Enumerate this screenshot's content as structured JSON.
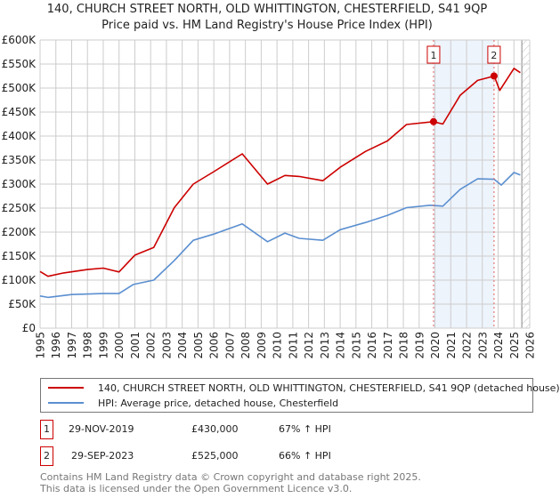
{
  "title": "140, CHURCH STREET NORTH, OLD WHITTINGTON, CHESTERFIELD, S41 9QP",
  "subtitle": "Price paid vs. HM Land Registry's House Price Index (HPI)",
  "colors": {
    "property": "#cc0000",
    "hpi": "#5b8fd0",
    "shade": "#eef4fc",
    "grid": "#cccccc"
  },
  "chart_data": {
    "type": "line",
    "title": "140, CHURCH STREET NORTH, OLD WHITTINGTON, CHESTERFIELD, S41 9QP",
    "subtitle": "Price paid vs. HM Land Registry's House Price Index (HPI)",
    "xlim": [
      1995,
      2026
    ],
    "ylim": [
      0,
      600000
    ],
    "grid": true,
    "x_ticks": [
      "1995",
      "1996",
      "1997",
      "1998",
      "1999",
      "2000",
      "2001",
      "2002",
      "2003",
      "2004",
      "2005",
      "2006",
      "2007",
      "2008",
      "2009",
      "2010",
      "2011",
      "2012",
      "2013",
      "2014",
      "2015",
      "2016",
      "2017",
      "2018",
      "2019",
      "2020",
      "2021",
      "2022",
      "2023",
      "2024",
      "2025",
      "2026"
    ],
    "y_ticks": [
      {
        "value": 0,
        "label": "£0"
      },
      {
        "value": 50000,
        "label": "£50K"
      },
      {
        "value": 100000,
        "label": "£100K"
      },
      {
        "value": 150000,
        "label": "£150K"
      },
      {
        "value": 200000,
        "label": "£200K"
      },
      {
        "value": 250000,
        "label": "£250K"
      },
      {
        "value": 300000,
        "label": "£300K"
      },
      {
        "value": 350000,
        "label": "£350K"
      },
      {
        "value": 400000,
        "label": "£400K"
      },
      {
        "value": 450000,
        "label": "£450K"
      },
      {
        "value": 500000,
        "label": "£500K"
      },
      {
        "value": 550000,
        "label": "£550K"
      },
      {
        "value": 600000,
        "label": "£600K"
      }
    ],
    "series": [
      {
        "name": "140, CHURCH STREET NORTH, OLD WHITTINGTON, CHESTERFIELD, S41 9QP (detached house)",
        "x": [
          1995.0,
          1995.5,
          1996.5,
          1998,
          1999,
          2000,
          2001,
          2002.2,
          2003.5,
          2004.7,
          2006,
          2007.8,
          2009.4,
          2010.5,
          2011.4,
          2012.9,
          2014,
          2015.6,
          2017,
          2018.2,
          2019.9,
          2020.5,
          2021.6,
          2022.7,
          2023.75,
          2024.1,
          2025,
          2025.4
        ],
        "y": [
          118000,
          108000,
          115000,
          122000,
          125000,
          117000,
          152000,
          168000,
          251000,
          300000,
          326000,
          363000,
          300000,
          318000,
          316000,
          307000,
          335000,
          368000,
          390000,
          424000,
          430000,
          425000,
          485000,
          516000,
          525000,
          495000,
          541000,
          532000
        ]
      },
      {
        "name": "HPI: Average price, detached house, Chesterfield",
        "x": [
          1995.0,
          1995.5,
          1997,
          1999,
          2000,
          2000.9,
          2002.2,
          2003.5,
          2004.7,
          2006,
          2007.8,
          2009.4,
          2010.5,
          2011.4,
          2012.9,
          2014,
          2015.6,
          2017,
          2018.2,
          2019.7,
          2020.5,
          2021.6,
          2022.7,
          2023.75,
          2024.2,
          2025,
          2025.4
        ],
        "y": [
          67000,
          64000,
          70000,
          72000,
          72000,
          91000,
          100000,
          141000,
          183000,
          196000,
          217000,
          180000,
          198000,
          187000,
          183000,
          205000,
          220000,
          235000,
          251000,
          256000,
          254000,
          289000,
          311000,
          310000,
          298000,
          324000,
          319000
        ]
      }
    ],
    "annotations": [
      {
        "label": "1",
        "x": 2019.91,
        "y": 430000
      },
      {
        "label": "2",
        "x": 2023.74,
        "y": 525000
      }
    ],
    "shaded_range": [
      2019.91,
      2023.74
    ],
    "hatched_from": 2025.5
  },
  "legend": {
    "property": "140, CHURCH STREET NORTH, OLD WHITTINGTON, CHESTERFIELD, S41 9QP (detached house)",
    "hpi": "HPI: Average price, detached house, Chesterfield"
  },
  "transactions": [
    {
      "num": "1",
      "date": "29-NOV-2019",
      "price": "£430,000",
      "hpi": "67% ↑ HPI"
    },
    {
      "num": "2",
      "date": "29-SEP-2023",
      "price": "£525,000",
      "hpi": "66% ↑ HPI"
    }
  ],
  "footer": {
    "line1": "Contains HM Land Registry data © Crown copyright and database right 2025.",
    "line2": "This data is licensed under the Open Government Licence v3.0."
  }
}
